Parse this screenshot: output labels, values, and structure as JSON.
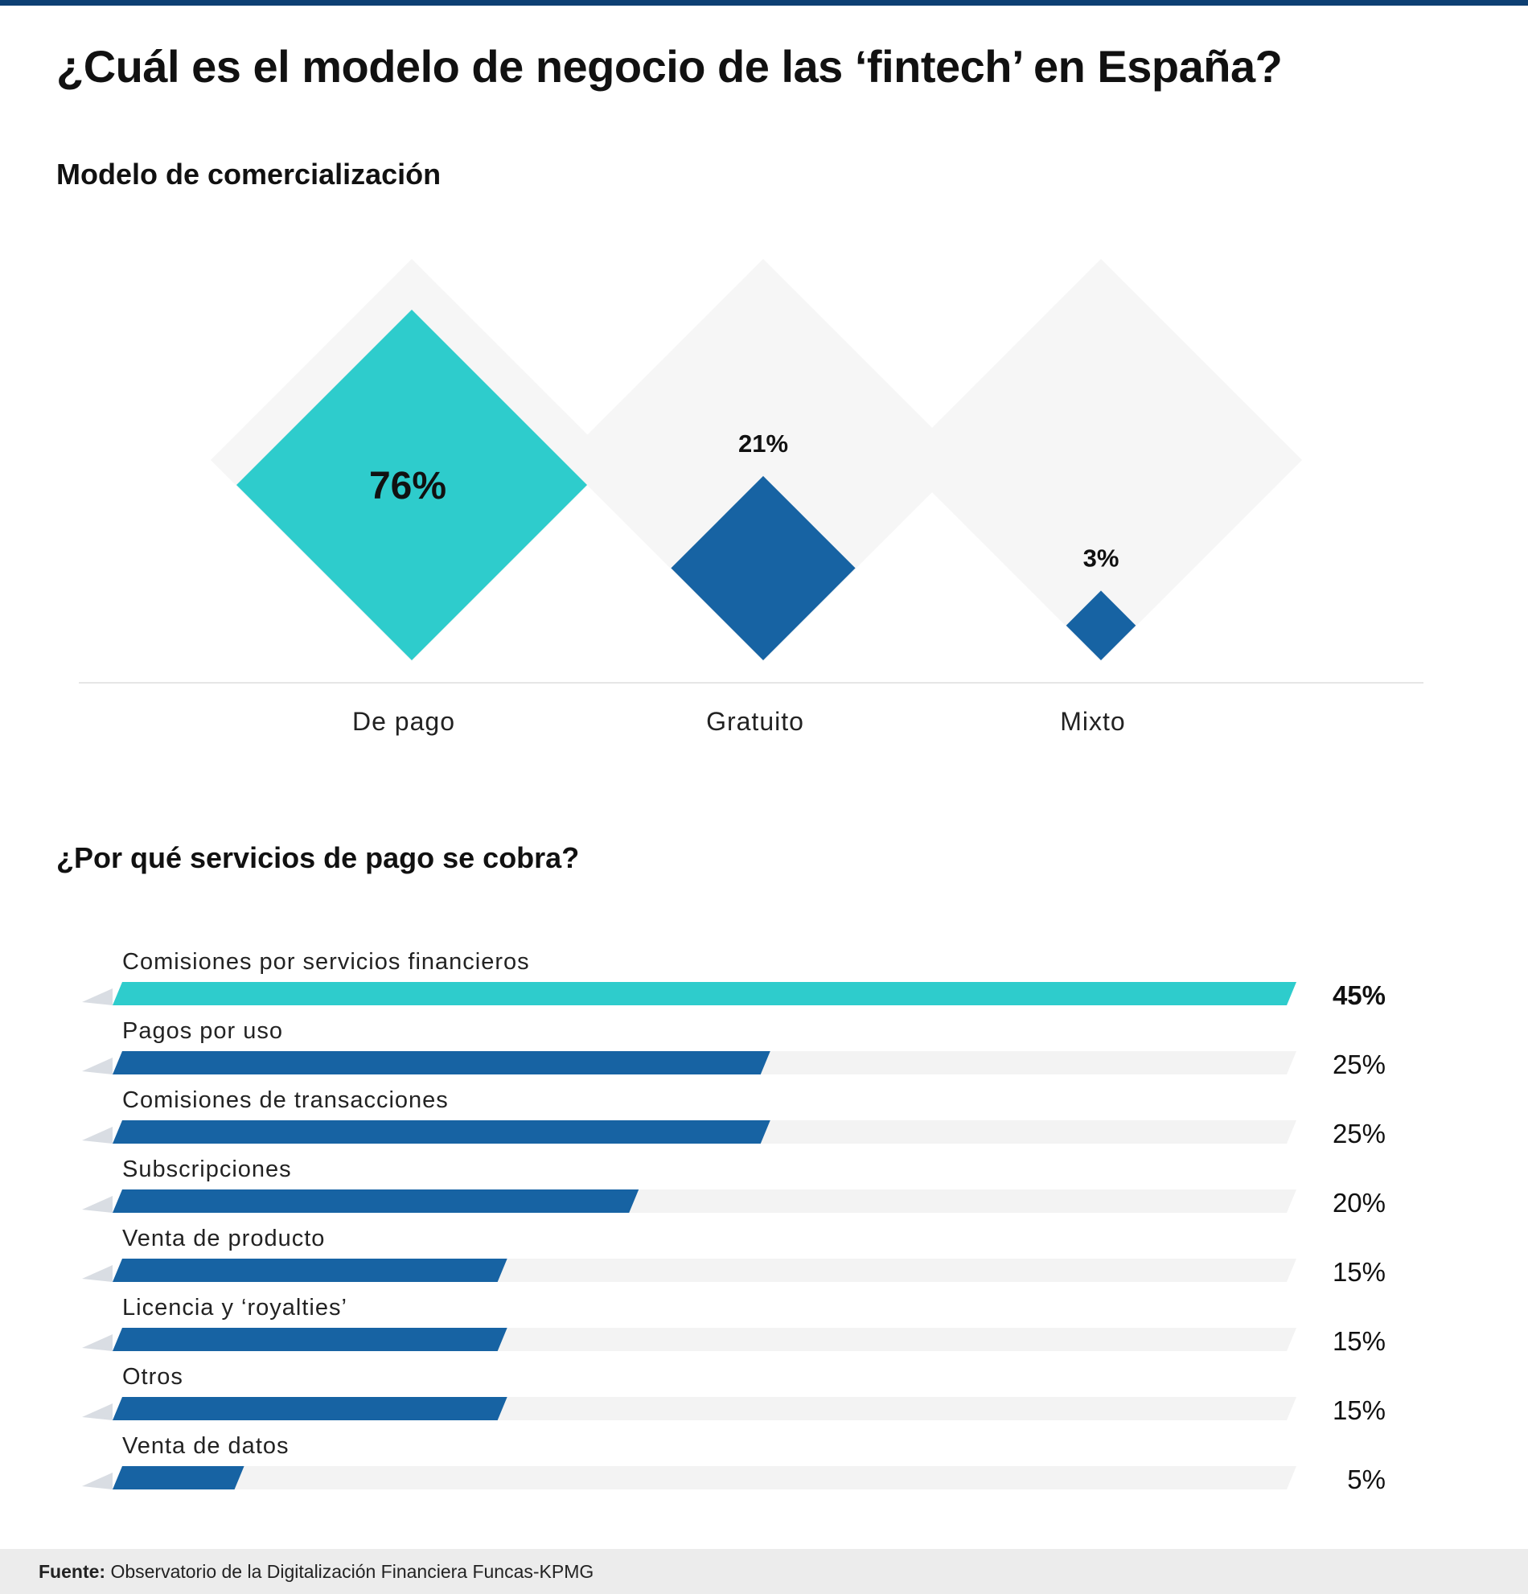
{
  "title": "¿Cuál es el modelo de negocio de las ‘fintech’ en España?",
  "colors": {
    "accent": "#2ecccc",
    "bar": "#1763a3",
    "track": "#f3f3f3",
    "ghost": "#f6f6f6",
    "rule": "#0d3f73"
  },
  "footer": {
    "label": "Fuente:",
    "text": "Observatorio de la Digitalización Financiera Funcas-KPMG"
  },
  "chart_data": [
    {
      "type": "diamond",
      "title": "Modelo de comercialización",
      "unit": "%",
      "categories": [
        "De pago",
        "Gratuito",
        "Mixto"
      ],
      "values": [
        76,
        21,
        3
      ],
      "labels": [
        "76%",
        "21%",
        "3%"
      ],
      "highlight_index": 0
    },
    {
      "type": "bar",
      "title": "¿Por qué servicios de pago se cobra?",
      "orientation": "horizontal",
      "unit": "%",
      "categories": [
        "Comisiones por servicios financieros",
        "Pagos por uso",
        "Comisiones de transacciones",
        "Subscripciones",
        "Venta de producto",
        "Licencia y ‘royalties’",
        "Otros",
        "Venta de datos"
      ],
      "values": [
        45,
        25,
        25,
        20,
        15,
        15,
        15,
        5
      ],
      "labels": [
        "45%",
        "25%",
        "25%",
        "20%",
        "15%",
        "15%",
        "15%",
        "5%"
      ],
      "xlim": [
        0,
        45
      ],
      "highlight_index": 0
    }
  ]
}
